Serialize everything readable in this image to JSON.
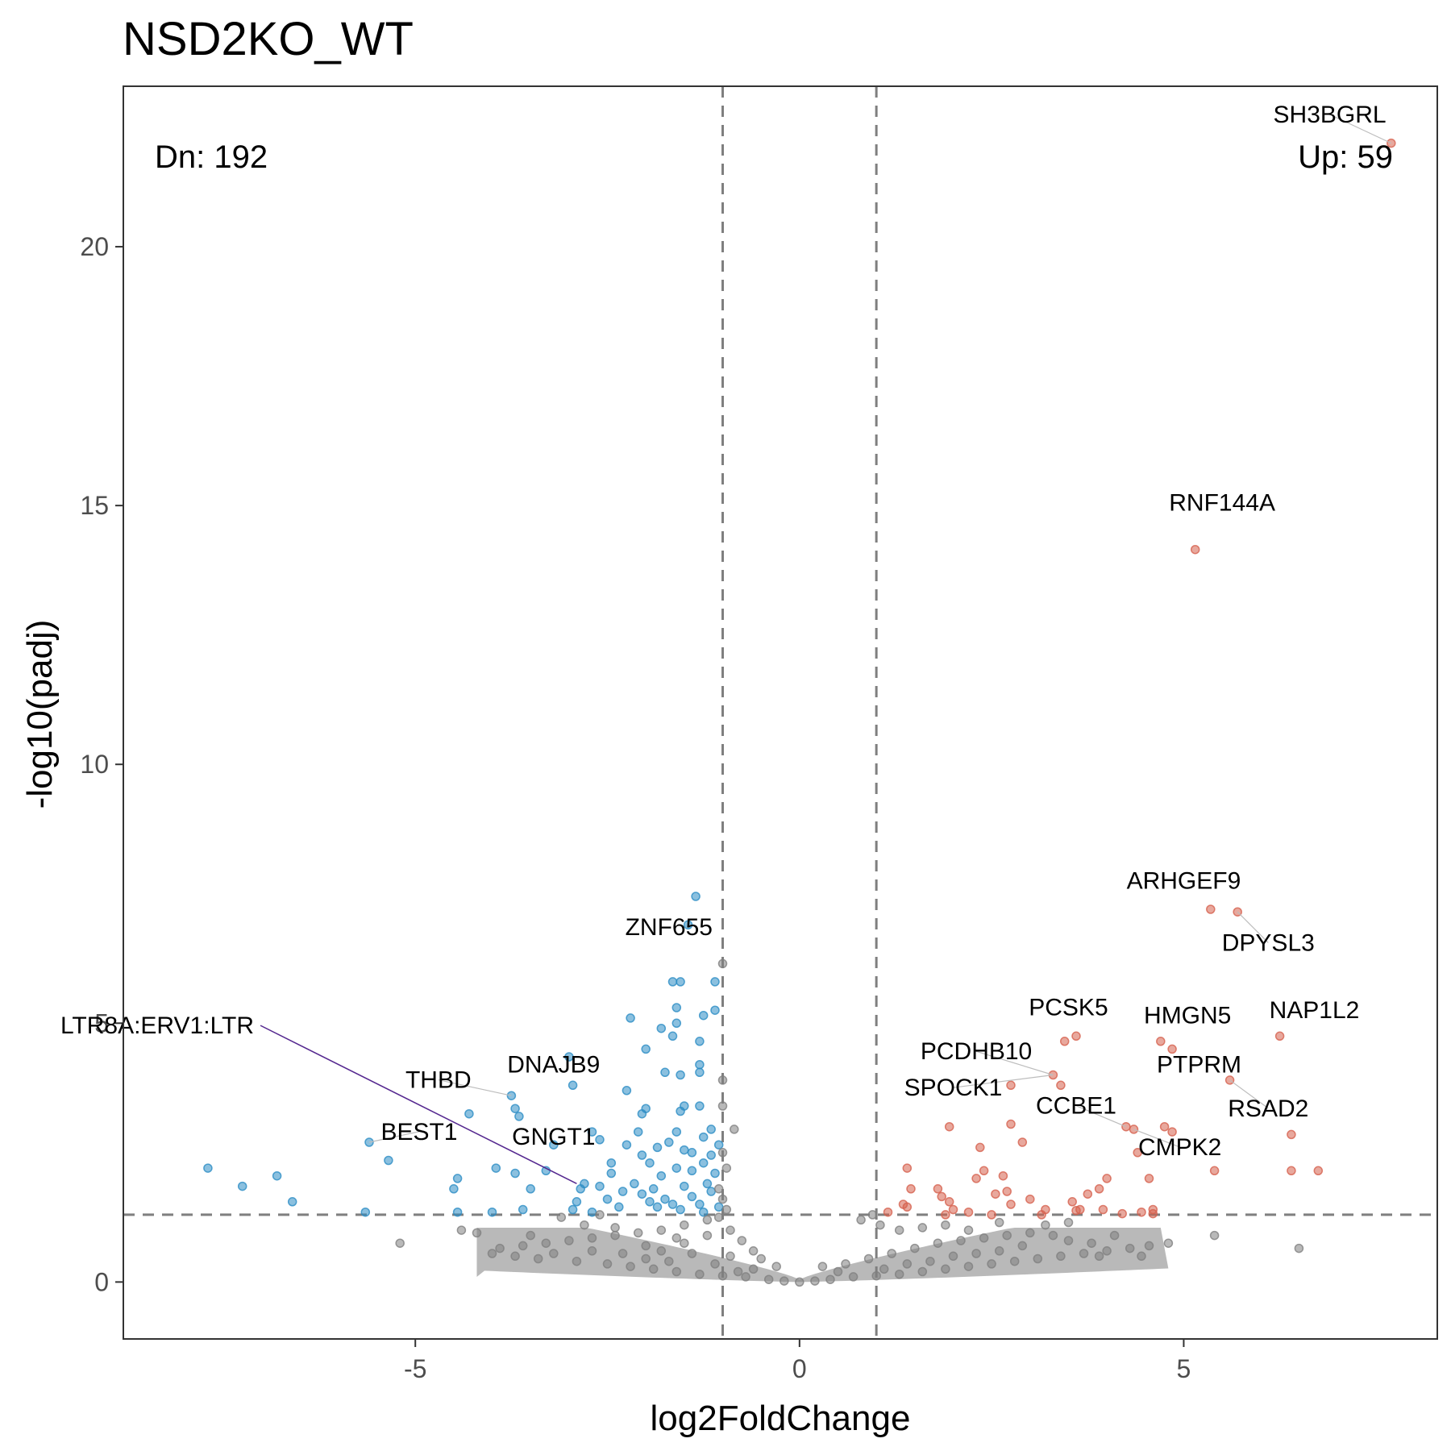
{
  "chart_data": {
    "type": "scatter",
    "title": "NSD2KO_WT",
    "xlabel": "log2FoldChange",
    "ylabel": "-log10(padj)",
    "xlim": [
      -8.8,
      8.3
    ],
    "ylim": [
      -1.1,
      23.1
    ],
    "x_ticks": [
      -5,
      0,
      5
    ],
    "y_ticks": [
      0,
      5,
      10,
      15,
      20
    ],
    "grid": false,
    "thresholds": {
      "log2fc": [
        -1,
        1
      ],
      "neg_log10_padj": 1.3
    },
    "count_labels": {
      "down": "Dn: 192",
      "up": "Up: 59"
    },
    "colors": {
      "up": "#d6604d",
      "down": "#2b8cc4",
      "ns": "#7f7f7f",
      "highlight": "#54278f"
    },
    "series": [
      {
        "name": "Up",
        "color": "#d6604d",
        "points": [
          [
            7.7,
            22.0
          ],
          [
            5.15,
            14.15
          ],
          [
            5.35,
            7.2
          ],
          [
            5.7,
            7.15
          ],
          [
            6.25,
            4.75
          ],
          [
            3.6,
            4.75
          ],
          [
            3.45,
            4.65
          ],
          [
            4.7,
            4.65
          ],
          [
            4.85,
            4.5
          ],
          [
            3.3,
            4.0
          ],
          [
            3.4,
            3.8
          ],
          [
            2.75,
            3.8
          ],
          [
            5.6,
            3.9
          ],
          [
            2.75,
            3.05
          ],
          [
            1.95,
            3.0
          ],
          [
            4.25,
            3.0
          ],
          [
            4.35,
            2.95
          ],
          [
            4.75,
            3.0
          ],
          [
            4.85,
            2.9
          ],
          [
            6.4,
            2.85
          ],
          [
            2.9,
            2.7
          ],
          [
            2.35,
            2.6
          ],
          [
            4.4,
            2.5
          ],
          [
            1.4,
            2.2
          ],
          [
            2.4,
            2.15
          ],
          [
            5.4,
            2.15
          ],
          [
            6.4,
            2.15
          ],
          [
            6.75,
            2.15
          ],
          [
            2.65,
            2.05
          ],
          [
            2.3,
            2.0
          ],
          [
            4.0,
            2.0
          ],
          [
            4.55,
            2.0
          ],
          [
            1.45,
            1.8
          ],
          [
            3.9,
            1.8
          ],
          [
            1.8,
            1.8
          ],
          [
            2.7,
            1.75
          ],
          [
            1.85,
            1.65
          ],
          [
            3.75,
            1.7
          ],
          [
            2.55,
            1.7
          ],
          [
            1.95,
            1.55
          ],
          [
            3.0,
            1.6
          ],
          [
            3.55,
            1.55
          ],
          [
            1.35,
            1.5
          ],
          [
            3.65,
            1.4
          ],
          [
            4.45,
            1.35
          ],
          [
            4.6,
            1.4
          ],
          [
            3.95,
            1.4
          ],
          [
            1.15,
            1.35
          ],
          [
            1.9,
            1.3
          ],
          [
            2.2,
            1.35
          ],
          [
            2.5,
            1.3
          ],
          [
            3.15,
            1.3
          ],
          [
            4.6,
            1.32
          ],
          [
            3.2,
            1.4
          ],
          [
            2.0,
            1.4
          ],
          [
            4.2,
            1.32
          ],
          [
            1.4,
            1.45
          ],
          [
            2.75,
            1.5
          ],
          [
            3.6,
            1.38
          ]
        ]
      },
      {
        "name": "Dn",
        "color": "#2b8cc4",
        "points": [
          [
            -1.35,
            7.45
          ],
          [
            -1.45,
            6.9
          ],
          [
            -1.55,
            5.8
          ],
          [
            -1.65,
            5.8
          ],
          [
            -1.1,
            5.8
          ],
          [
            -1.6,
            5.3
          ],
          [
            -1.1,
            5.25
          ],
          [
            -1.25,
            5.15
          ],
          [
            -2.2,
            5.1
          ],
          [
            -1.6,
            5.0
          ],
          [
            -1.8,
            4.9
          ],
          [
            -1.65,
            4.75
          ],
          [
            -1.3,
            4.65
          ],
          [
            -3.0,
            4.35
          ],
          [
            -2.0,
            4.5
          ],
          [
            -1.3,
            4.2
          ],
          [
            -1.75,
            4.05
          ],
          [
            -1.55,
            4.0
          ],
          [
            -1.3,
            4.05
          ],
          [
            -2.25,
            3.7
          ],
          [
            -2.95,
            3.8
          ],
          [
            -3.75,
            3.6
          ],
          [
            -2.0,
            3.35
          ],
          [
            -1.5,
            3.4
          ],
          [
            -1.3,
            3.4
          ],
          [
            -2.05,
            3.25
          ],
          [
            -3.7,
            3.35
          ],
          [
            -3.65,
            3.2
          ],
          [
            -1.55,
            3.3
          ],
          [
            -4.3,
            3.25
          ],
          [
            -2.1,
            2.9
          ],
          [
            -1.6,
            2.9
          ],
          [
            -1.25,
            2.8
          ],
          [
            -1.15,
            2.95
          ],
          [
            -1.05,
            2.65
          ],
          [
            -2.7,
            2.9
          ],
          [
            -5.6,
            2.7
          ],
          [
            -1.7,
            2.7
          ],
          [
            -1.5,
            2.55
          ],
          [
            -3.2,
            2.65
          ],
          [
            -2.6,
            2.75
          ],
          [
            -2.25,
            2.65
          ],
          [
            -1.4,
            2.5
          ],
          [
            -2.05,
            2.45
          ],
          [
            -1.85,
            2.6
          ],
          [
            -1.15,
            2.45
          ],
          [
            -5.35,
            2.35
          ],
          [
            -7.7,
            2.2
          ],
          [
            -3.3,
            2.15
          ],
          [
            -2.45,
            2.3
          ],
          [
            -1.95,
            2.3
          ],
          [
            -1.6,
            2.2
          ],
          [
            -1.25,
            2.3
          ],
          [
            -3.95,
            2.2
          ],
          [
            -4.45,
            2.0
          ],
          [
            -2.45,
            2.1
          ],
          [
            -3.7,
            2.1
          ],
          [
            -6.8,
            2.05
          ],
          [
            -1.8,
            2.05
          ],
          [
            -1.4,
            2.15
          ],
          [
            -1.1,
            2.1
          ],
          [
            -7.25,
            1.85
          ],
          [
            -3.5,
            1.8
          ],
          [
            -2.85,
            1.8
          ],
          [
            -2.6,
            1.85
          ],
          [
            -2.15,
            1.9
          ],
          [
            -1.9,
            1.8
          ],
          [
            -1.5,
            1.85
          ],
          [
            -1.2,
            1.9
          ],
          [
            -4.5,
            1.8
          ],
          [
            -2.3,
            1.75
          ],
          [
            -2.05,
            1.7
          ],
          [
            -1.75,
            1.6
          ],
          [
            -1.4,
            1.65
          ],
          [
            -1.15,
            1.75
          ],
          [
            -6.6,
            1.55
          ],
          [
            -2.5,
            1.6
          ],
          [
            -1.95,
            1.55
          ],
          [
            -1.65,
            1.5
          ],
          [
            -1.3,
            1.5
          ],
          [
            -2.9,
            1.55
          ],
          [
            -4.0,
            1.35
          ],
          [
            -4.45,
            1.35
          ],
          [
            -5.65,
            1.35
          ],
          [
            -2.95,
            1.4
          ],
          [
            -2.7,
            1.35
          ],
          [
            -2.35,
            1.45
          ],
          [
            -1.85,
            1.45
          ],
          [
            -1.55,
            1.4
          ],
          [
            -1.25,
            1.35
          ],
          [
            -3.6,
            1.4
          ],
          [
            -1.05,
            1.45
          ],
          [
            -2.8,
            1.9
          ]
        ]
      },
      {
        "name": "NS",
        "color": "#7f7f7f",
        "points": [
          [
            -1.0,
            6.15
          ],
          [
            -1.0,
            3.9
          ],
          [
            -1.0,
            3.4
          ],
          [
            -0.85,
            2.95
          ],
          [
            -1.05,
            1.25
          ],
          [
            -1.2,
            1.2
          ],
          [
            -1.5,
            1.1
          ],
          [
            -1.8,
            1.0
          ],
          [
            -2.1,
            0.95
          ],
          [
            -2.4,
            0.9
          ],
          [
            -2.7,
            0.85
          ],
          [
            -3.0,
            0.8
          ],
          [
            -3.3,
            0.75
          ],
          [
            -3.6,
            0.7
          ],
          [
            -3.9,
            0.65
          ],
          [
            -4.0,
            0.55
          ],
          [
            -3.7,
            0.5
          ],
          [
            -3.4,
            0.45
          ],
          [
            -2.9,
            0.4
          ],
          [
            -2.5,
            0.35
          ],
          [
            -2.2,
            0.3
          ],
          [
            -1.9,
            0.25
          ],
          [
            -1.6,
            0.2
          ],
          [
            -1.3,
            0.15
          ],
          [
            -1.0,
            0.12
          ],
          [
            -0.7,
            0.1
          ],
          [
            -0.4,
            0.05
          ],
          [
            -0.2,
            0.02
          ],
          [
            0.0,
            0.0
          ],
          [
            0.2,
            0.02
          ],
          [
            0.4,
            0.05
          ],
          [
            0.7,
            0.1
          ],
          [
            1.0,
            0.12
          ],
          [
            1.3,
            0.15
          ],
          [
            1.6,
            0.2
          ],
          [
            1.9,
            0.25
          ],
          [
            2.2,
            0.3
          ],
          [
            2.5,
            0.35
          ],
          [
            2.8,
            0.4
          ],
          [
            3.1,
            0.45
          ],
          [
            3.4,
            0.5
          ],
          [
            3.7,
            0.55
          ],
          [
            4.0,
            0.6
          ],
          [
            4.3,
            0.65
          ],
          [
            4.55,
            0.7
          ],
          [
            4.45,
            0.5
          ],
          [
            4.8,
            0.75
          ],
          [
            5.4,
            0.9
          ],
          [
            6.5,
            0.65
          ],
          [
            3.9,
            0.5
          ],
          [
            -5.2,
            0.75
          ],
          [
            -4.2,
            0.95
          ],
          [
            -4.4,
            1.0
          ],
          [
            -3.1,
            1.25
          ],
          [
            -2.6,
            1.3
          ],
          [
            -0.9,
            1.0
          ],
          [
            -0.75,
            0.8
          ],
          [
            -0.6,
            0.6
          ],
          [
            -0.5,
            0.45
          ],
          [
            -1.8,
            0.6
          ],
          [
            -2.0,
            0.7
          ],
          [
            -1.5,
            0.75
          ],
          [
            -1.2,
            0.9
          ],
          [
            -0.9,
            0.5
          ],
          [
            -2.3,
            0.55
          ],
          [
            -2.7,
            0.6
          ],
          [
            -3.2,
            0.55
          ],
          [
            -1.1,
            0.35
          ],
          [
            -1.7,
            0.4
          ],
          [
            -2.0,
            0.45
          ],
          [
            0.6,
            0.35
          ],
          [
            0.9,
            0.45
          ],
          [
            1.2,
            0.55
          ],
          [
            1.5,
            0.65
          ],
          [
            1.8,
            0.75
          ],
          [
            2.1,
            0.8
          ],
          [
            2.4,
            0.85
          ],
          [
            2.7,
            0.9
          ],
          [
            3.0,
            0.95
          ],
          [
            3.3,
            0.9
          ],
          [
            3.5,
            0.8
          ],
          [
            3.8,
            0.75
          ],
          [
            4.1,
            0.9
          ],
          [
            1.1,
            0.25
          ],
          [
            1.4,
            0.35
          ],
          [
            1.7,
            0.4
          ],
          [
            2.0,
            0.5
          ],
          [
            2.3,
            0.55
          ],
          [
            2.6,
            0.6
          ],
          [
            2.9,
            0.7
          ],
          [
            0.8,
            1.2
          ],
          [
            0.95,
            1.3
          ],
          [
            1.05,
            1.1
          ],
          [
            1.3,
            1.0
          ],
          [
            1.6,
            1.05
          ],
          [
            -1.0,
            1.6
          ],
          [
            -1.05,
            1.8
          ],
          [
            -0.95,
            2.2
          ],
          [
            -1.0,
            2.5
          ],
          [
            -0.95,
            1.4
          ],
          [
            3.2,
            1.1
          ],
          [
            3.5,
            1.15
          ],
          [
            2.6,
            1.15
          ],
          [
            2.2,
            1.0
          ],
          [
            1.9,
            1.1
          ],
          [
            -0.3,
            0.3
          ],
          [
            -0.6,
            0.25
          ],
          [
            0.3,
            0.3
          ],
          [
            0.5,
            0.2
          ],
          [
            -0.8,
            0.2
          ],
          [
            -1.4,
            0.55
          ],
          [
            -1.6,
            0.85
          ],
          [
            -2.4,
            1.05
          ],
          [
            -3.5,
            0.9
          ],
          [
            -2.8,
            1.1
          ]
        ]
      }
    ],
    "annotations": [
      {
        "label": "SH3BGRL",
        "x": 7.7,
        "y": 22.0,
        "label_x": 6.9,
        "label_y": 22.4
      },
      {
        "label": "RNF144A",
        "x": 5.15,
        "y": 14.15,
        "label_x": 5.5,
        "label_y": 14.9
      },
      {
        "label": "ARHGEF9",
        "x": 5.35,
        "y": 7.2,
        "label_x": 5.0,
        "label_y": 7.6
      },
      {
        "label": "DPYSL3",
        "x": 5.7,
        "y": 7.15,
        "label_x": 6.1,
        "label_y": 6.4
      },
      {
        "label": "ZNF655",
        "x": -1.45,
        "y": 6.9,
        "label_x": -1.7,
        "label_y": 6.7
      },
      {
        "label": "PCSK5",
        "x": 3.6,
        "y": 4.75,
        "label_x": 3.5,
        "label_y": 5.15
      },
      {
        "label": "HMGN5",
        "x": 4.7,
        "y": 4.65,
        "label_x": 5.05,
        "label_y": 5.0
      },
      {
        "label": "NAP1L2",
        "x": 6.25,
        "y": 4.75,
        "label_x": 6.7,
        "label_y": 5.1
      },
      {
        "label": "PCDHB10",
        "x": 3.3,
        "y": 4.0,
        "label_x": 2.3,
        "label_y": 4.3
      },
      {
        "label": "PTPRM",
        "x": 5.6,
        "y": 3.9,
        "label_x": 5.2,
        "label_y": 4.05
      },
      {
        "label": "SPOCK1",
        "x": 3.3,
        "y": 4.0,
        "label_x": 2.0,
        "label_y": 3.6
      },
      {
        "label": "RSAD2",
        "x": 5.6,
        "y": 3.9,
        "label_x": 6.1,
        "label_y": 3.2
      },
      {
        "label": "CCBE1",
        "x": 4.25,
        "y": 3.0,
        "label_x": 3.6,
        "label_y": 3.25
      },
      {
        "label": "CMPK2",
        "x": 4.35,
        "y": 2.95,
        "label_x": 4.95,
        "label_y": 2.45
      },
      {
        "label": "DNAJB9",
        "x": -3.0,
        "y": 4.35,
        "label_x": -3.2,
        "label_y": 4.05
      },
      {
        "label": "THBD",
        "x": -3.75,
        "y": 3.6,
        "label_x": -4.7,
        "label_y": 3.75
      },
      {
        "label": "BEST1",
        "x": -5.6,
        "y": 2.7,
        "label_x": -4.95,
        "label_y": 2.75
      },
      {
        "label": "GNGT1",
        "x": -3.3,
        "y": 2.65,
        "label_x": -3.2,
        "label_y": 2.65
      },
      {
        "label": "LTR8A:ERV1:LTR",
        "x": -2.9,
        "y": 1.9,
        "label_x": -7.1,
        "label_y": 4.8,
        "highlight": true
      }
    ]
  }
}
